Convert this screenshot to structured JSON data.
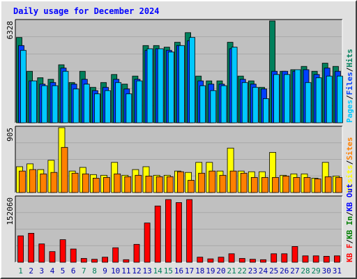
{
  "title": "Daily usage for December 2024",
  "colors": {
    "background": "#e0e0e0",
    "plot_bg": "#c0c0c0",
    "title": "#0000ff",
    "grid": "#a8a8a8",
    "hits": "#00805c",
    "files": "#0040ff",
    "pages": "#00c8ff",
    "visits": "#ffff00",
    "sites": "#ff8000",
    "kbin": "#007f00",
    "kbout": "#0000ff",
    "kbf": "#ff0000",
    "weekend_label": "#00805c",
    "weekday_label": "#0000b0"
  },
  "chart_data": [
    {
      "type": "bar",
      "panel": "top",
      "ymax_label": "6328",
      "ylim": [
        0,
        6328
      ],
      "legend": [
        "Pages",
        "Files",
        "Hits"
      ],
      "series": [
        {
          "name": "Hits",
          "values": [
            5300,
            3200,
            2800,
            2700,
            3600,
            2500,
            3200,
            2200,
            2500,
            3000,
            2400,
            2900,
            4800,
            4800,
            4700,
            5000,
            5600,
            2900,
            2600,
            2600,
            5000,
            2900,
            2600,
            2200,
            6328,
            3200,
            3300,
            3500,
            3200,
            3700,
            3500
          ]
        },
        {
          "name": "Files",
          "values": [
            4800,
            2600,
            2400,
            2500,
            3400,
            2400,
            2700,
            2000,
            2200,
            2700,
            2100,
            2700,
            4500,
            4600,
            4500,
            4800,
            5100,
            2600,
            2400,
            2400,
            4600,
            2700,
            2400,
            2100,
            3200,
            3200,
            3200,
            3300,
            3000,
            3400,
            3200
          ]
        },
        {
          "name": "Pages",
          "values": [
            4500,
            2600,
            2300,
            2300,
            3200,
            2100,
            2400,
            1800,
            2000,
            2500,
            1800,
            2600,
            4600,
            4600,
            4400,
            4800,
            5300,
            2300,
            2000,
            2300,
            4700,
            2500,
            2200,
            1500,
            3000,
            3000,
            3300,
            2500,
            2800,
            2900,
            2900
          ]
        }
      ]
    },
    {
      "type": "bar",
      "panel": "middle",
      "ymax_label": "905",
      "ylim": [
        0,
        905
      ],
      "legend": [
        "Visits",
        "Sites"
      ],
      "series": [
        {
          "name": "Visits",
          "values": [
            360,
            400,
            320,
            450,
            905,
            300,
            350,
            250,
            240,
            420,
            240,
            320,
            360,
            240,
            240,
            300,
            280,
            420,
            420,
            300,
            620,
            300,
            290,
            290,
            560,
            240,
            260,
            260,
            200,
            420,
            230
          ]
        },
        {
          "name": "Sites",
          "values": [
            300,
            320,
            260,
            280,
            630,
            270,
            260,
            200,
            210,
            260,
            220,
            240,
            230,
            220,
            220,
            290,
            170,
            270,
            300,
            240,
            300,
            270,
            210,
            210,
            210,
            230,
            210,
            210,
            190,
            220,
            210
          ]
        }
      ]
    },
    {
      "type": "bar",
      "panel": "bottom",
      "ymax_label": "152060",
      "ylim": [
        0,
        152060
      ],
      "legend": [
        "KB F",
        "KB In",
        "KB Out"
      ],
      "series": [
        {
          "name": "KB F",
          "values": [
            62000,
            68000,
            43000,
            25000,
            53000,
            31000,
            9000,
            7000,
            12000,
            34000,
            6000,
            42000,
            92000,
            132000,
            147000,
            140000,
            147000,
            12000,
            8000,
            12000,
            20000,
            9000,
            7000,
            6000,
            20000,
            20000,
            37000,
            15000,
            15000,
            14000,
            15000
          ]
        }
      ]
    }
  ],
  "x_labels": [
    "1",
    "2",
    "3",
    "4",
    "5",
    "6",
    "7",
    "8",
    "9",
    "10",
    "11",
    "12",
    "13",
    "14",
    "15",
    "16",
    "17",
    "18",
    "19",
    "20",
    "21",
    "22",
    "23",
    "24",
    "25",
    "26",
    "27",
    "28",
    "29",
    "30",
    "31"
  ],
  "weekend_days": [
    1,
    7,
    8,
    14,
    15,
    21,
    22,
    28,
    29
  ]
}
